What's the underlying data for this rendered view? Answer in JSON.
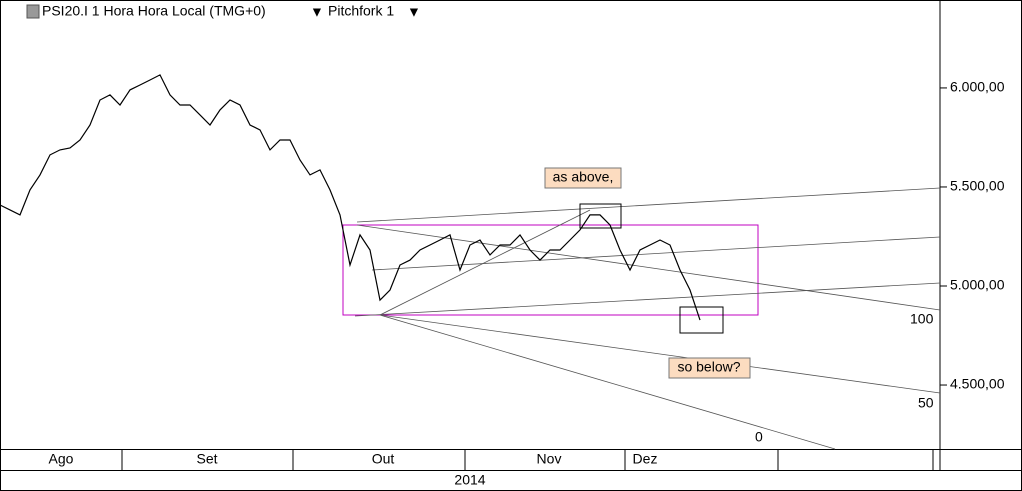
{
  "chart_data": {
    "type": "line",
    "title": "PSI20.I 1 Hora Hora Local (TMG+0)",
    "tool": "Pitchfork 1",
    "x_labels": [
      "Ago",
      "Set",
      "Out",
      "Nov",
      "Dez"
    ],
    "year_label": "2014",
    "color": "#000000",
    "values": [
      5409,
      5384,
      5359,
      5485,
      5561,
      5662,
      5687,
      5697,
      5737,
      5813,
      5939,
      5965,
      5914,
      5990,
      6015,
      6040,
      6066,
      5965,
      5914,
      5914,
      5864,
      5813,
      5889,
      5939,
      5914,
      5813,
      5788,
      5687,
      5737,
      5737,
      5636,
      5561,
      5586,
      5485,
      5359,
      5106,
      5258,
      5182,
      4929,
      4980,
      5106,
      5131,
      5182,
      5207,
      5232,
      5258,
      5081,
      5207,
      5232,
      5157,
      5207,
      5207,
      5258,
      5182,
      5131,
      5182,
      5182,
      5232,
      5283,
      5359,
      5359,
      5308,
      5182,
      5081,
      5182,
      5207,
      5232,
      5207,
      5081,
      4980,
      4828
    ],
    "ylim": [
      4177,
      6444
    ],
    "yticks": [
      {
        "value": 4500,
        "label": "4.500,00"
      },
      {
        "value": 5000,
        "label": "5.000,00"
      },
      {
        "value": 5500,
        "label": "5.500,00"
      },
      {
        "value": 6000,
        "label": "6.000,00"
      }
    ],
    "annotations": [
      "as above,",
      "so below?"
    ],
    "fork_levels": [
      "100",
      "50",
      "0"
    ]
  }
}
